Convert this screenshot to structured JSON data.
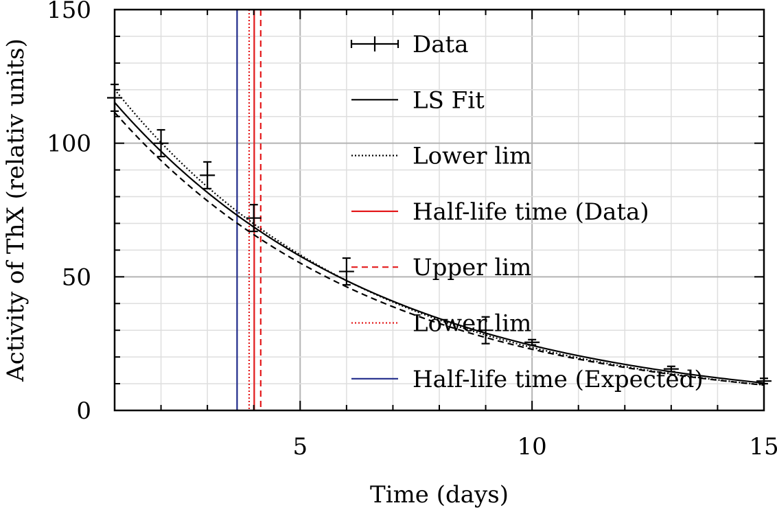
{
  "chart_data": {
    "type": "line",
    "xlabel": "Time (days)",
    "ylabel": "Activity of ThX (relativ units)",
    "xlim": [
      1,
      15
    ],
    "ylim": [
      0,
      150
    ],
    "xticks": [
      5,
      10,
      15
    ],
    "xtick_labels": [
      "5",
      "10",
      "15"
    ],
    "yticks": [
      0,
      50,
      100,
      150
    ],
    "ytick_labels": [
      "0",
      "50",
      "100",
      "150"
    ],
    "grid": true,
    "legend_position": "top-right",
    "data_points": {
      "name": "Data",
      "color": "#000000",
      "x": [
        1,
        2,
        3,
        4,
        6,
        9,
        10,
        13,
        15
      ],
      "y": [
        117,
        100,
        88,
        72,
        52,
        30,
        25.5,
        15.5,
        11
      ],
      "yerr": [
        5,
        5,
        5,
        5,
        5,
        5,
        1,
        1,
        1
      ]
    },
    "curves": [
      {
        "name": "LS Fit",
        "style": "solid",
        "color": "#000000",
        "A": 137,
        "k": 0.1728
      },
      {
        "name": "Lower lim",
        "style": "dotted",
        "color": "#000000",
        "A": 144,
        "k": 0.181
      },
      {
        "name": "",
        "style": "dashed",
        "color": "#000000",
        "A": 133,
        "k": 0.176
      }
    ],
    "vlines": [
      {
        "name": "Half-life time (Data)",
        "x": 4.01,
        "style": "solid",
        "color": "#e41a1c"
      },
      {
        "name": "Upper lim",
        "x": 4.15,
        "style": "dashed",
        "color": "#e41a1c"
      },
      {
        "name": "Lower lim",
        "x": 3.9,
        "style": "dotted",
        "color": "#e41a1c"
      },
      {
        "name": "Half-life time (Expected)",
        "x": 3.64,
        "style": "solid",
        "color": "#1f2a8a"
      }
    ],
    "legend": [
      {
        "label": "Data",
        "kind": "errorbar",
        "color": "#000000",
        "style": "solid"
      },
      {
        "label": "LS Fit",
        "kind": "line",
        "color": "#000000",
        "style": "solid"
      },
      {
        "label": "Lower lim",
        "kind": "line",
        "color": "#000000",
        "style": "dotted"
      },
      {
        "label": "Half-life time (Data)",
        "kind": "line",
        "color": "#e41a1c",
        "style": "solid"
      },
      {
        "label": "Upper lim",
        "kind": "line",
        "color": "#e41a1c",
        "style": "dashed"
      },
      {
        "label": "Lower lim",
        "kind": "line",
        "color": "#e41a1c",
        "style": "dotted"
      },
      {
        "label": "Half-life time (Expected)",
        "kind": "line",
        "color": "#1f2a8a",
        "style": "solid"
      }
    ]
  }
}
